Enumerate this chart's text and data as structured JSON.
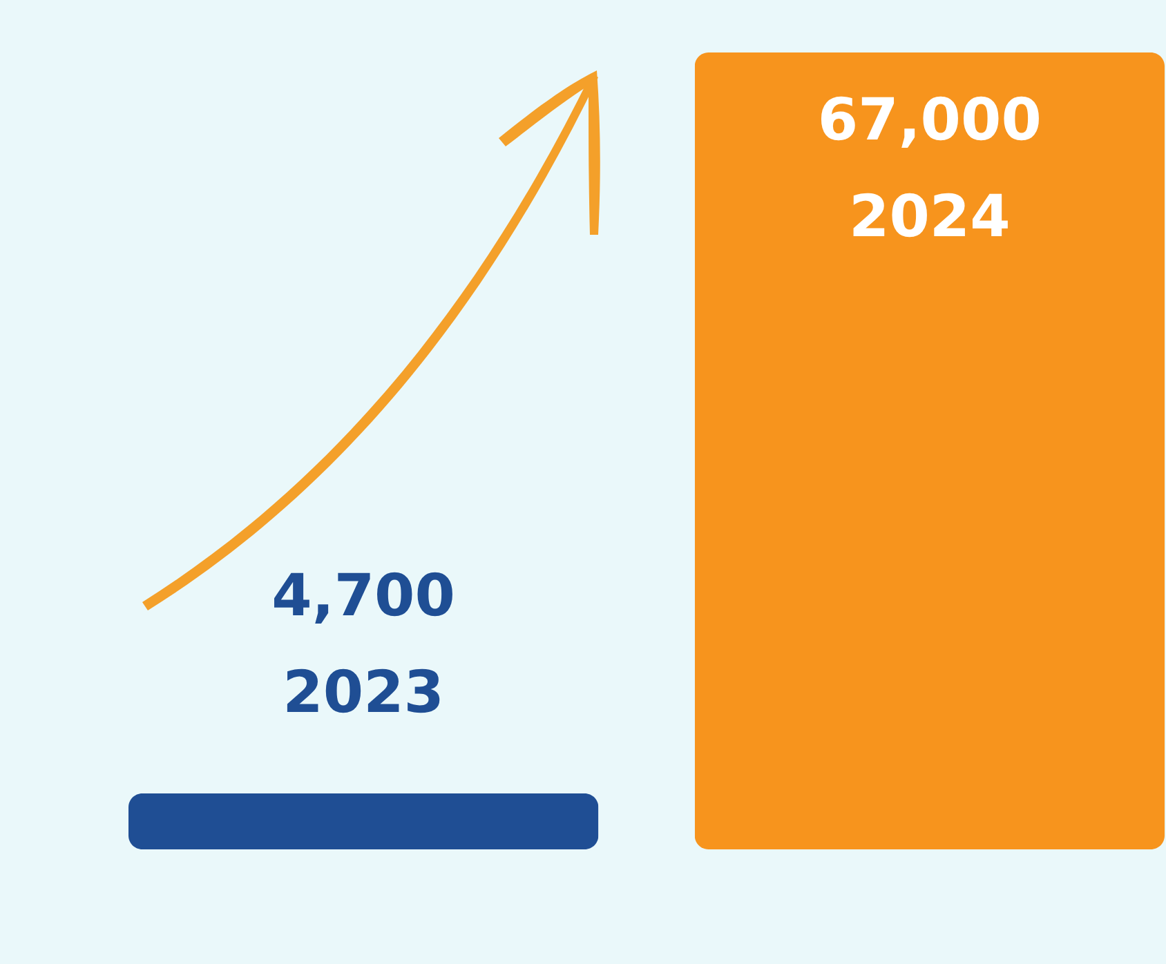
{
  "chart_data": {
    "type": "bar",
    "categories": [
      "2023",
      "2024"
    ],
    "values": [
      4700,
      67000
    ],
    "colors": [
      "#1f4e94",
      "#f7941d"
    ],
    "value_labels": [
      "4,700",
      "67,000"
    ]
  }
}
